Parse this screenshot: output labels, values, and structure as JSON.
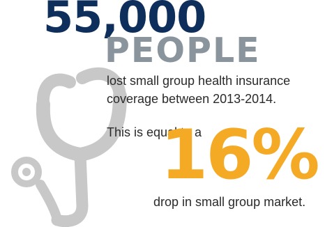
{
  "colors": {
    "navy": "#0e2f5c",
    "gray": "#8a949c",
    "orange": "#f5aa25",
    "icon_gray": "#c8c8c8"
  },
  "icon": "stethoscope-icon",
  "headline": {
    "number": "55,000",
    "unit": "PEOPLE"
  },
  "body": {
    "line1": "lost small group health insurance",
    "line2": "coverage between 2013-2014.",
    "line3": "This is equal to a",
    "percent": "16%",
    "line4": "drop in small group market."
  }
}
